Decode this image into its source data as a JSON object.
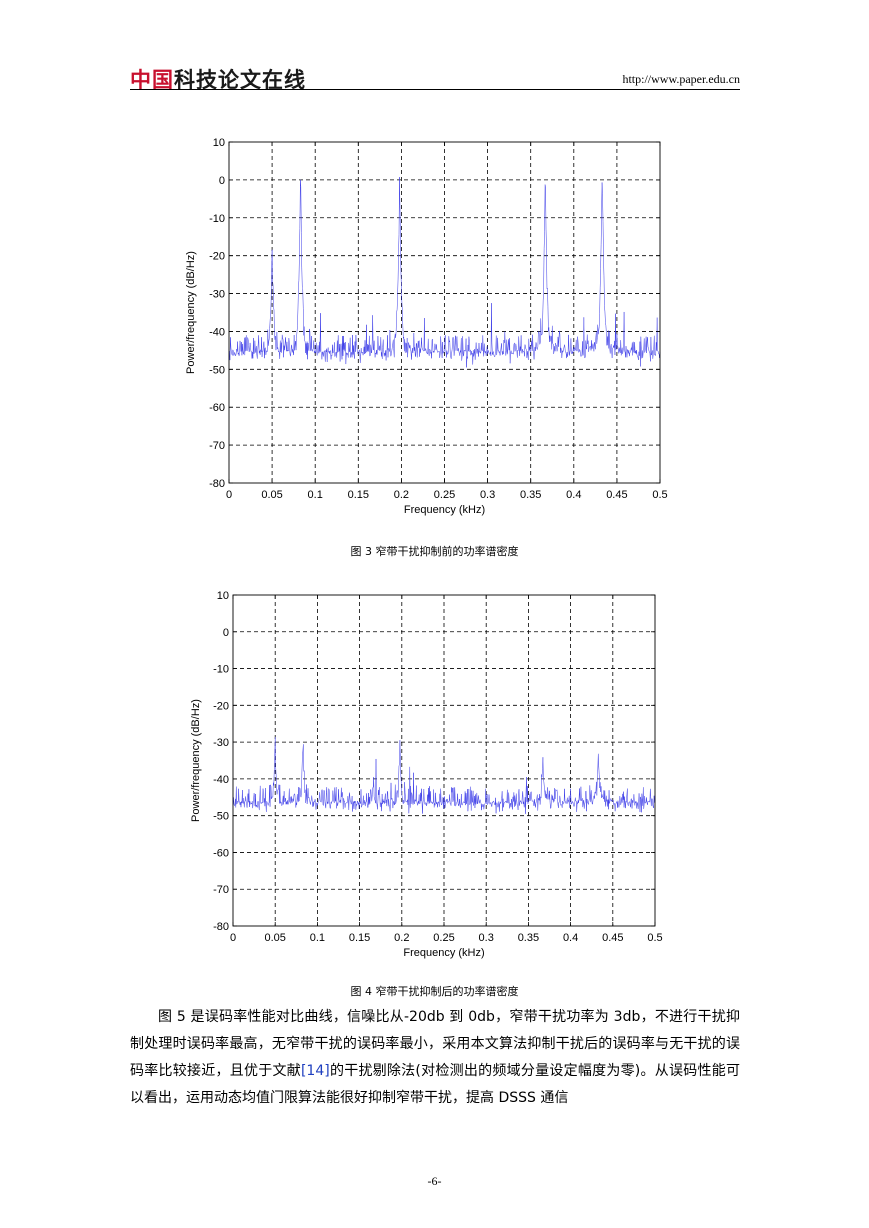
{
  "header": {
    "logo_red": "中国",
    "logo_dark": "科技论文在线",
    "url": "http://www.paper.edu.cn"
  },
  "figures": [
    {
      "caption": "图 3  窄带干扰抑制前的功率谱密度"
    },
    {
      "caption": "图 4  窄带干扰抑制后的功率谱密度"
    }
  ],
  "chart_data": [
    {
      "type": "line",
      "xlabel": "Frequency (kHz)",
      "ylabel": "Power/frequency (dB/Hz)",
      "xlim": [
        0,
        0.5
      ],
      "ylim": [
        -80,
        10
      ],
      "xticks": [
        "0",
        "0.05",
        "0.1",
        "0.15",
        "0.2",
        "0.25",
        "0.3",
        "0.35",
        "0.4",
        "0.45",
        "0.5"
      ],
      "yticks": [
        "10",
        "0",
        "-10",
        "-20",
        "-30",
        "-40",
        "-50",
        "-60",
        "-70",
        "-80"
      ],
      "grid": true,
      "color": "#3a3ae8",
      "noise_floor": -48,
      "peaks": [
        {
          "x": 0.05,
          "y": -18
        },
        {
          "x": 0.083,
          "y": 4
        },
        {
          "x": 0.198,
          "y": 3
        },
        {
          "x": 0.367,
          "y": 4
        },
        {
          "x": 0.433,
          "y": 4
        }
      ]
    },
    {
      "type": "line",
      "xlabel": "Frequency (kHz)",
      "ylabel": "Power/frequency (dB/Hz)",
      "xlim": [
        0,
        0.5
      ],
      "ylim": [
        -80,
        10
      ],
      "xticks": [
        "0",
        "0.05",
        "0.1",
        "0.15",
        "0.2",
        "0.25",
        "0.3",
        "0.35",
        "0.4",
        "0.45",
        "0.5"
      ],
      "yticks": [
        "10",
        "0",
        "-10",
        "-20",
        "-30",
        "-40",
        "-50",
        "-60",
        "-70",
        "-80"
      ],
      "grid": true,
      "color": "#3a3ae8",
      "noise_floor": -49,
      "peaks": [
        {
          "x": 0.05,
          "y": -31
        },
        {
          "x": 0.083,
          "y": -31
        },
        {
          "x": 0.198,
          "y": -30
        },
        {
          "x": 0.367,
          "y": -35
        },
        {
          "x": 0.433,
          "y": -32
        }
      ]
    }
  ],
  "body": {
    "before_cite": "图 5 是误码率性能对比曲线，信噪比从-20db 到 0db，窄带干扰功率为 3db，不进行干扰抑制处理时误码率最高，无窄带干扰的误码率最小，采用本文算法抑制干扰后的误码率与无干扰的误码率比较接近，且优于文献",
    "cite": "[14]",
    "after_cite": "的干扰剔除法(对检测出的频域分量设定幅度为零)。从误码性能可以看出，运用动态均值门限算法能很好抑制窄带干扰，提高 DSSS 通信"
  },
  "page_number": "-6-"
}
